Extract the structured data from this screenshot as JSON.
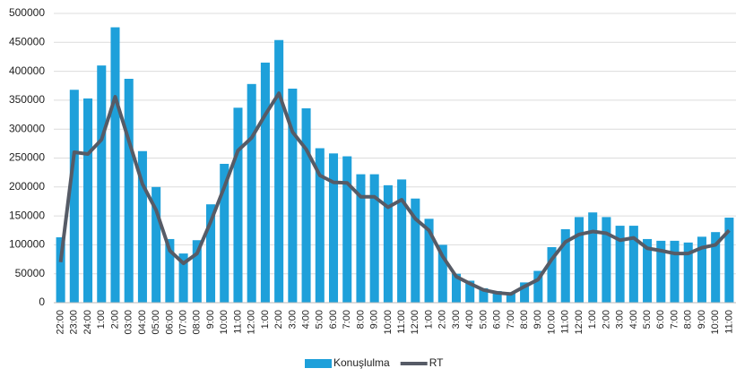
{
  "chart_data": {
    "type": "bar_line",
    "categories": [
      "22:00",
      "23:00",
      "24:00",
      "1:00",
      "2:00",
      "03:00",
      "04:00",
      "05:00",
      "06:00",
      "07:00",
      "08:00",
      "9:00",
      "10:00",
      "11:00",
      "12:00",
      "1:00",
      "2:00",
      "3:00",
      "4:00",
      "5:00",
      "6:00",
      "7:00",
      "8:00",
      "9:00",
      "10:00",
      "11:00",
      "12:00",
      "1:00",
      "2:00",
      "3:00",
      "4:00",
      "5:00",
      "6:00",
      "7:00",
      "8:00",
      "9:00",
      "10:00",
      "11:00",
      "12:00",
      "1:00",
      "2:00",
      "3:00",
      "4:00",
      "5:00",
      "6:00",
      "7:00",
      "8:00",
      "9:00",
      "10:00",
      "11:00"
    ],
    "series": [
      {
        "name": "Konuşlulma",
        "type": "bar",
        "color": "#1ea0da",
        "values": [
          113000,
          368000,
          353000,
          410000,
          476000,
          387000,
          262000,
          200000,
          110000,
          85000,
          108000,
          170000,
          240000,
          337000,
          378000,
          415000,
          454000,
          370000,
          336000,
          267000,
          258000,
          253000,
          222000,
          222000,
          203000,
          213000,
          180000,
          145000,
          100000,
          50000,
          38000,
          25000,
          20000,
          18000,
          35000,
          55000,
          96000,
          127000,
          148000,
          156000,
          148000,
          133000,
          133000,
          110000,
          107000,
          107000,
          104000,
          114000,
          122000,
          147000
        ]
      },
      {
        "name": "RT",
        "type": "line",
        "color": "#565b66",
        "values": [
          70000,
          260000,
          257000,
          282000,
          356000,
          280000,
          205000,
          160000,
          90000,
          68000,
          85000,
          140000,
          200000,
          263000,
          285000,
          325000,
          362000,
          295000,
          265000,
          220000,
          208000,
          207000,
          183000,
          183000,
          165000,
          178000,
          145000,
          125000,
          80000,
          45000,
          33000,
          22000,
          17000,
          15000,
          28000,
          40000,
          75000,
          105000,
          118000,
          123000,
          120000,
          108000,
          112000,
          94000,
          90000,
          85000,
          85000,
          95000,
          100000,
          125000
        ]
      }
    ],
    "ylim": [
      0,
      500000
    ],
    "yticks": [
      0,
      50000,
      100000,
      150000,
      200000,
      250000,
      300000,
      350000,
      400000,
      450000,
      500000
    ],
    "grid": true,
    "legend": "bottom"
  }
}
